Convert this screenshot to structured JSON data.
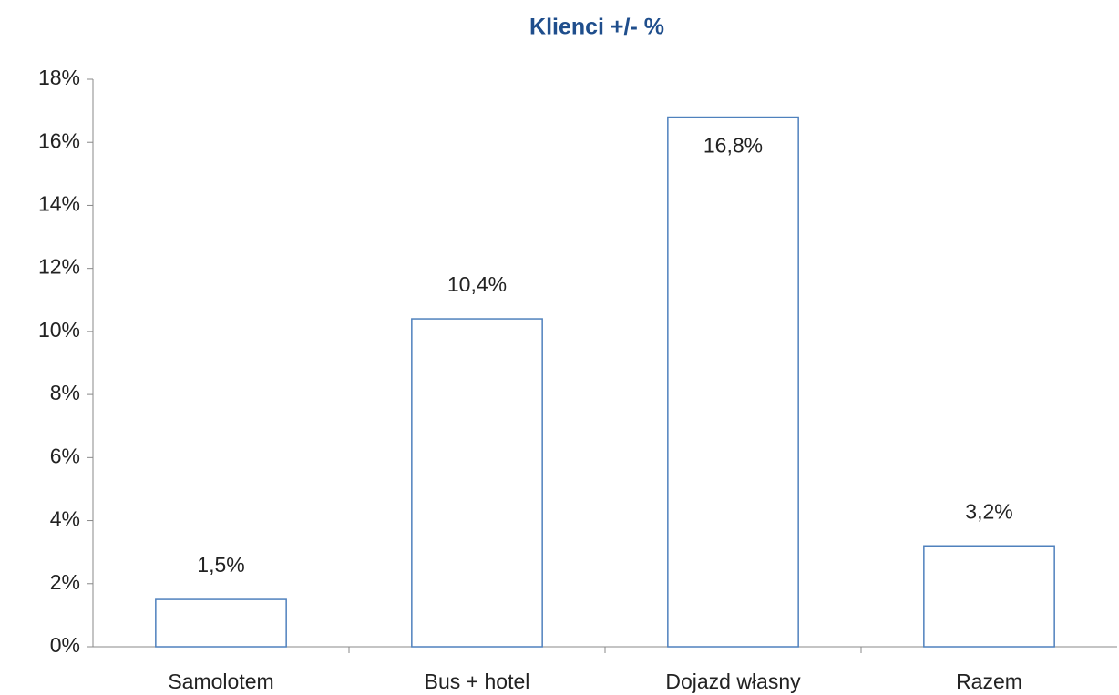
{
  "chart_data": {
    "type": "bar",
    "title": "Klienci +/- %",
    "categories": [
      "Samolotem",
      "Bus + hotel",
      "Dojazd własny",
      "Razem"
    ],
    "values": [
      1.5,
      10.4,
      16.8,
      3.2
    ],
    "value_labels": [
      "1,5%",
      "10,4%",
      "16,8%",
      "3,2%"
    ],
    "color": "#4f81bd",
    "ylim": [
      0,
      18
    ],
    "yticks": [
      {
        "value": 0,
        "label": "0%"
      },
      {
        "value": 2,
        "label": "2%"
      },
      {
        "value": 4,
        "label": "4%"
      },
      {
        "value": 6,
        "label": "6%"
      },
      {
        "value": 8,
        "label": "8%"
      },
      {
        "value": 10,
        "label": "10%"
      },
      {
        "value": 12,
        "label": "12%"
      },
      {
        "value": 14,
        "label": "14%"
      },
      {
        "value": 16,
        "label": "16%"
      },
      {
        "value": 18,
        "label": "18%"
      }
    ],
    "grid": false
  }
}
